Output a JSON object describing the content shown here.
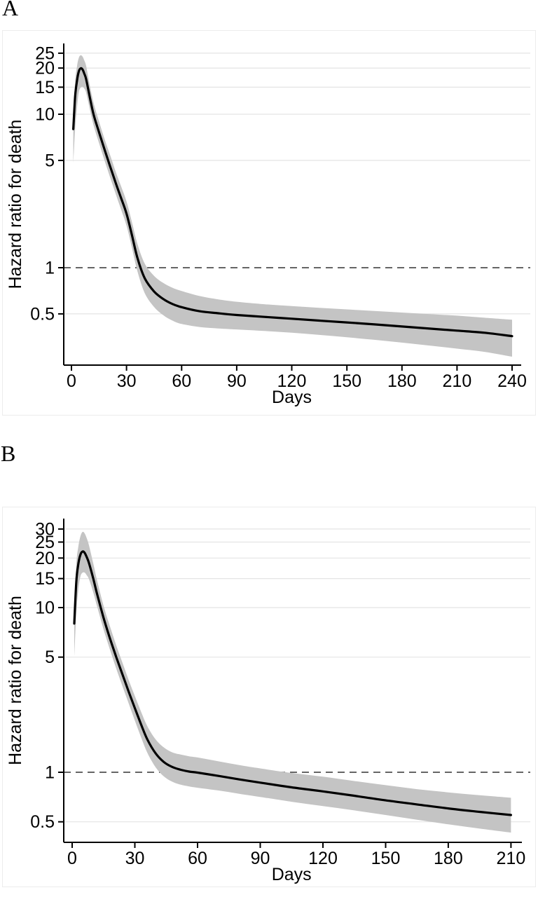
{
  "figure": {
    "panels": [
      {
        "label": "A"
      },
      {
        "label": "B"
      }
    ]
  },
  "colors": {
    "curve": "#000000",
    "confidence_band": "#c4c4c4",
    "gridline": "#e4e4e4",
    "reference_line": "#333333",
    "axis": "#000000",
    "panel_border": "#ececec",
    "background": "#ffffff"
  },
  "chart_data": [
    {
      "type": "line",
      "panel_label": "A",
      "title": "",
      "xlabel": "Days",
      "ylabel": "Hazard ratio for death",
      "y_scale": "log",
      "grid": true,
      "legend": false,
      "x_ticks": [
        0,
        30,
        60,
        90,
        120,
        150,
        180,
        210,
        240
      ],
      "y_ticks": [
        25,
        20,
        15,
        10,
        5,
        1,
        0.5
      ],
      "y_tick_labels": [
        "25",
        "20",
        "15",
        "10",
        "5",
        "1",
        "0.5"
      ],
      "reference_line_y": 1,
      "x_range": [
        0,
        240
      ],
      "y_range": [
        0.23,
        29
      ],
      "series_columns": [
        "day",
        "hazard_ratio",
        "ci_lower",
        "ci_upper"
      ],
      "points": [
        [
          1,
          8.0,
          4.8,
          9.8
        ],
        [
          2,
          13.0,
          8.0,
          16.2
        ],
        [
          3,
          16.5,
          11.0,
          20.5
        ],
        [
          4,
          19.0,
          13.9,
          23.3
        ],
        [
          5,
          19.9,
          14.9,
          24.2
        ],
        [
          6,
          19.6,
          15.1,
          23.8
        ],
        [
          7,
          18.4,
          14.7,
          22.4
        ],
        [
          8,
          16.9,
          13.8,
          20.6
        ],
        [
          10,
          12.9,
          10.8,
          15.4
        ],
        [
          12,
          10.0,
          8.5,
          11.9
        ],
        [
          15,
          7.65,
          6.5,
          9.0
        ],
        [
          18,
          5.9,
          5.0,
          6.9
        ],
        [
          21,
          4.6,
          3.9,
          5.45
        ],
        [
          24,
          3.6,
          3.05,
          4.25
        ],
        [
          27,
          2.85,
          2.4,
          3.4
        ],
        [
          30,
          2.25,
          1.88,
          2.7
        ],
        [
          33,
          1.62,
          1.34,
          1.97
        ],
        [
          36,
          1.15,
          0.94,
          1.42
        ],
        [
          40,
          0.85,
          0.68,
          1.06
        ],
        [
          45,
          0.7,
          0.555,
          0.885
        ],
        [
          50,
          0.625,
          0.49,
          0.795
        ],
        [
          55,
          0.58,
          0.452,
          0.74
        ],
        [
          60,
          0.553,
          0.43,
          0.705
        ],
        [
          70,
          0.52,
          0.41,
          0.653
        ],
        [
          80,
          0.505,
          0.402,
          0.622
        ],
        [
          90,
          0.492,
          0.396,
          0.6
        ],
        [
          105,
          0.478,
          0.387,
          0.578
        ],
        [
          120,
          0.465,
          0.377,
          0.562
        ],
        [
          135,
          0.452,
          0.365,
          0.548
        ],
        [
          150,
          0.44,
          0.352,
          0.535
        ],
        [
          165,
          0.427,
          0.339,
          0.522
        ],
        [
          180,
          0.414,
          0.325,
          0.51
        ],
        [
          195,
          0.401,
          0.311,
          0.498
        ],
        [
          210,
          0.389,
          0.297,
          0.487
        ],
        [
          225,
          0.377,
          0.283,
          0.472
        ],
        [
          240,
          0.358,
          0.263,
          0.458
        ]
      ]
    },
    {
      "type": "line",
      "panel_label": "B",
      "title": "",
      "xlabel": "Days",
      "ylabel": "Hazard ratio for death",
      "y_scale": "log",
      "grid": true,
      "legend": false,
      "x_ticks": [
        0,
        30,
        60,
        90,
        120,
        150,
        180,
        210
      ],
      "y_ticks": [
        30,
        25,
        20,
        15,
        10,
        5,
        1,
        0.5
      ],
      "y_tick_labels": [
        "30",
        "25",
        "20",
        "15",
        "10",
        "5",
        "1",
        "0.5"
      ],
      "reference_line_y": 1,
      "x_range": [
        0,
        210
      ],
      "y_range": [
        0.37,
        35
      ],
      "series_columns": [
        "day",
        "hazard_ratio",
        "ci_lower",
        "ci_upper"
      ],
      "points": [
        [
          1,
          8.0,
          5.0,
          10.3
        ],
        [
          2,
          14.5,
          9.3,
          18.6
        ],
        [
          3,
          18.5,
          13.0,
          23.6
        ],
        [
          4,
          21.0,
          15.5,
          27.2
        ],
        [
          5,
          21.9,
          16.3,
          28.8
        ],
        [
          6,
          21.5,
          16.3,
          28.2
        ],
        [
          7,
          20.2,
          15.7,
          26.3
        ],
        [
          8,
          18.7,
          14.9,
          24.0
        ],
        [
          10,
          15.2,
          12.5,
          18.8
        ],
        [
          12,
          12.0,
          10.1,
          14.5
        ],
        [
          15,
          8.7,
          7.4,
          10.3
        ],
        [
          18,
          6.55,
          5.6,
          7.75
        ],
        [
          21,
          5.05,
          4.3,
          5.95
        ],
        [
          24,
          3.95,
          3.35,
          4.65
        ],
        [
          27,
          3.1,
          2.63,
          3.65
        ],
        [
          30,
          2.45,
          2.06,
          2.9
        ],
        [
          33,
          1.95,
          1.63,
          2.33
        ],
        [
          36,
          1.58,
          1.31,
          1.9
        ],
        [
          40,
          1.3,
          1.07,
          1.58
        ],
        [
          44,
          1.15,
          0.94,
          1.41
        ],
        [
          48,
          1.075,
          0.875,
          1.32
        ],
        [
          52,
          1.035,
          0.84,
          1.28
        ],
        [
          56,
          1.01,
          0.82,
          1.25
        ],
        [
          60,
          0.995,
          0.805,
          1.23
        ],
        [
          70,
          0.95,
          0.775,
          1.165
        ],
        [
          80,
          0.905,
          0.74,
          1.105
        ],
        [
          90,
          0.865,
          0.708,
          1.055
        ],
        [
          105,
          0.81,
          0.662,
          0.99
        ],
        [
          120,
          0.765,
          0.623,
          0.94
        ],
        [
          135,
          0.72,
          0.587,
          0.885
        ],
        [
          150,
          0.675,
          0.55,
          0.835
        ],
        [
          165,
          0.638,
          0.515,
          0.79
        ],
        [
          180,
          0.603,
          0.483,
          0.755
        ],
        [
          195,
          0.575,
          0.455,
          0.725
        ],
        [
          210,
          0.55,
          0.43,
          0.7
        ]
      ]
    }
  ]
}
